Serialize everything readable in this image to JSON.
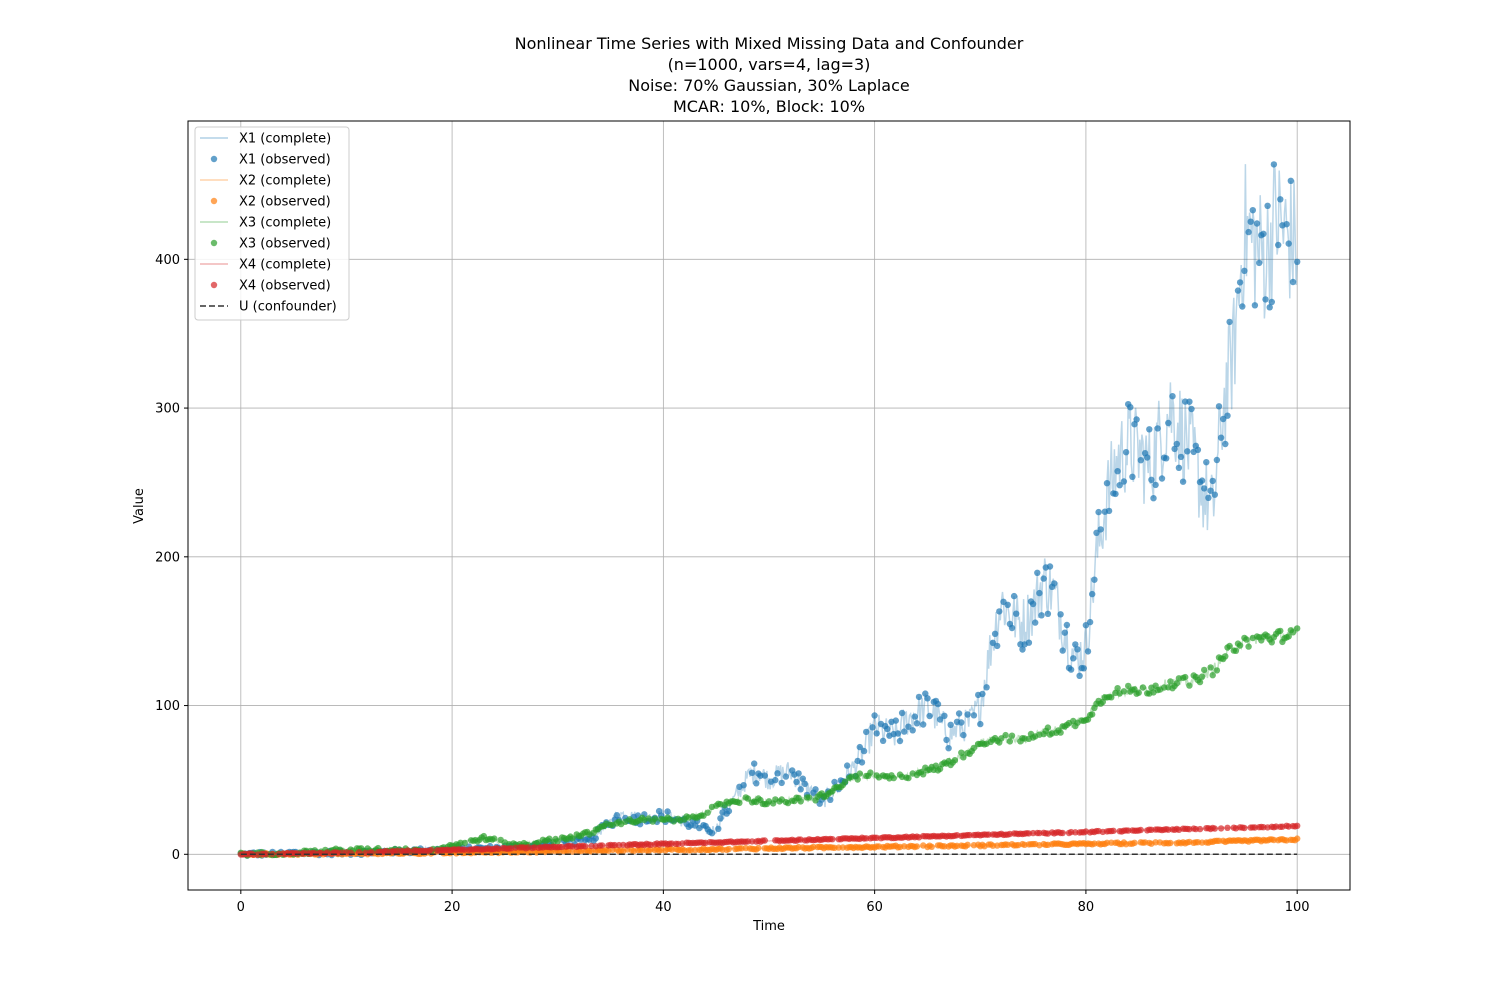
{
  "chart_data": {
    "type": "line",
    "title": [
      "Nonlinear Time Series with Mixed Missing Data and Confounder",
      "(n=1000, vars=4, lag=3)",
      "Noise: 70% Gaussian, 30% Laplace",
      "MCAR: 10%, Block: 10%"
    ],
    "xlabel": "Time",
    "ylabel": "Value",
    "xlim": [
      -5,
      105
    ],
    "ylim": [
      -24,
      493
    ],
    "xticks": [
      0,
      20,
      40,
      60,
      80,
      100
    ],
    "yticks": [
      0,
      100,
      200,
      300,
      400
    ],
    "grid": true,
    "legend_position": "upper left",
    "colors": {
      "X1": "#1f77b4",
      "X2": "#ff7f0e",
      "X3": "#2ca02c",
      "X4": "#d62728",
      "U": "#333333"
    },
    "legend": [
      "X1 (complete)",
      "X1 (observed)",
      "X2 (complete)",
      "X2 (observed)",
      "X3 (complete)",
      "X3 (observed)",
      "X4 (complete)",
      "X4 (observed)",
      "U (confounder)"
    ],
    "series": [
      {
        "name": "X1",
        "color": "#1f77b4",
        "x": [
          0,
          5,
          10,
          15,
          20,
          24,
          28,
          30,
          33,
          35,
          36,
          38,
          40,
          41,
          43,
          44,
          45,
          46,
          47,
          48,
          49,
          50,
          51,
          52,
          53,
          54,
          55,
          56,
          57,
          58,
          59,
          60,
          61,
          62,
          63,
          64,
          65,
          66,
          67,
          68,
          69,
          70,
          71,
          72,
          73,
          74,
          75,
          76,
          77,
          78,
          79,
          80,
          81,
          82,
          83,
          84,
          85,
          86,
          87,
          88,
          89,
          90,
          91,
          92,
          93,
          94,
          95,
          96,
          97,
          98,
          99,
          100
        ],
        "y": [
          0,
          1,
          1,
          2,
          3,
          4,
          6,
          8,
          9,
          22,
          27,
          24,
          26,
          24,
          20,
          16,
          17,
          30,
          40,
          52,
          56,
          50,
          54,
          56,
          48,
          42,
          35,
          42,
          50,
          58,
          70,
          85,
          82,
          80,
          90,
          95,
          98,
          92,
          80,
          85,
          88,
          100,
          140,
          170,
          160,
          155,
          165,
          185,
          175,
          150,
          130,
          140,
          200,
          240,
          265,
          275,
          270,
          260,
          280,
          300,
          285,
          270,
          245,
          230,
          300,
          340,
          420,
          410,
          400,
          430,
          415,
          410
        ]
      },
      {
        "name": "X2",
        "color": "#ff7f0e",
        "x": [
          0,
          10,
          20,
          30,
          40,
          50,
          60,
          70,
          80,
          90,
          100
        ],
        "y": [
          0,
          0.5,
          1,
          2,
          3,
          4,
          5,
          6,
          7,
          8,
          10
        ]
      },
      {
        "name": "X3",
        "color": "#2ca02c",
        "x": [
          0,
          5,
          10,
          15,
          18,
          20,
          23,
          26,
          30,
          33,
          35,
          38,
          40,
          42,
          44,
          46,
          48,
          50,
          52,
          54,
          56,
          58,
          60,
          62,
          64,
          66,
          68,
          70,
          72,
          74,
          76,
          78,
          80,
          82,
          84,
          86,
          88,
          90,
          92,
          94,
          96,
          98,
          100
        ],
        "y": [
          0,
          1,
          3,
          3,
          3,
          6,
          11,
          6,
          10,
          14,
          21,
          23,
          23,
          24,
          28,
          35,
          37,
          35,
          36,
          37,
          42,
          52,
          53,
          51,
          55,
          58,
          65,
          75,
          78,
          77,
          82,
          85,
          92,
          108,
          110,
          111,
          115,
          116,
          124,
          140,
          145,
          146,
          149
        ]
      },
      {
        "name": "X4",
        "color": "#d62728",
        "x": [
          0,
          10,
          20,
          30,
          40,
          50,
          60,
          70,
          80,
          90,
          100
        ],
        "y": [
          0,
          1,
          3,
          5,
          7,
          9,
          11,
          13,
          15,
          17,
          19
        ]
      },
      {
        "name": "U",
        "color": "#333333",
        "x": [
          0,
          100
        ],
        "y": [
          0,
          0
        ]
      }
    ]
  }
}
